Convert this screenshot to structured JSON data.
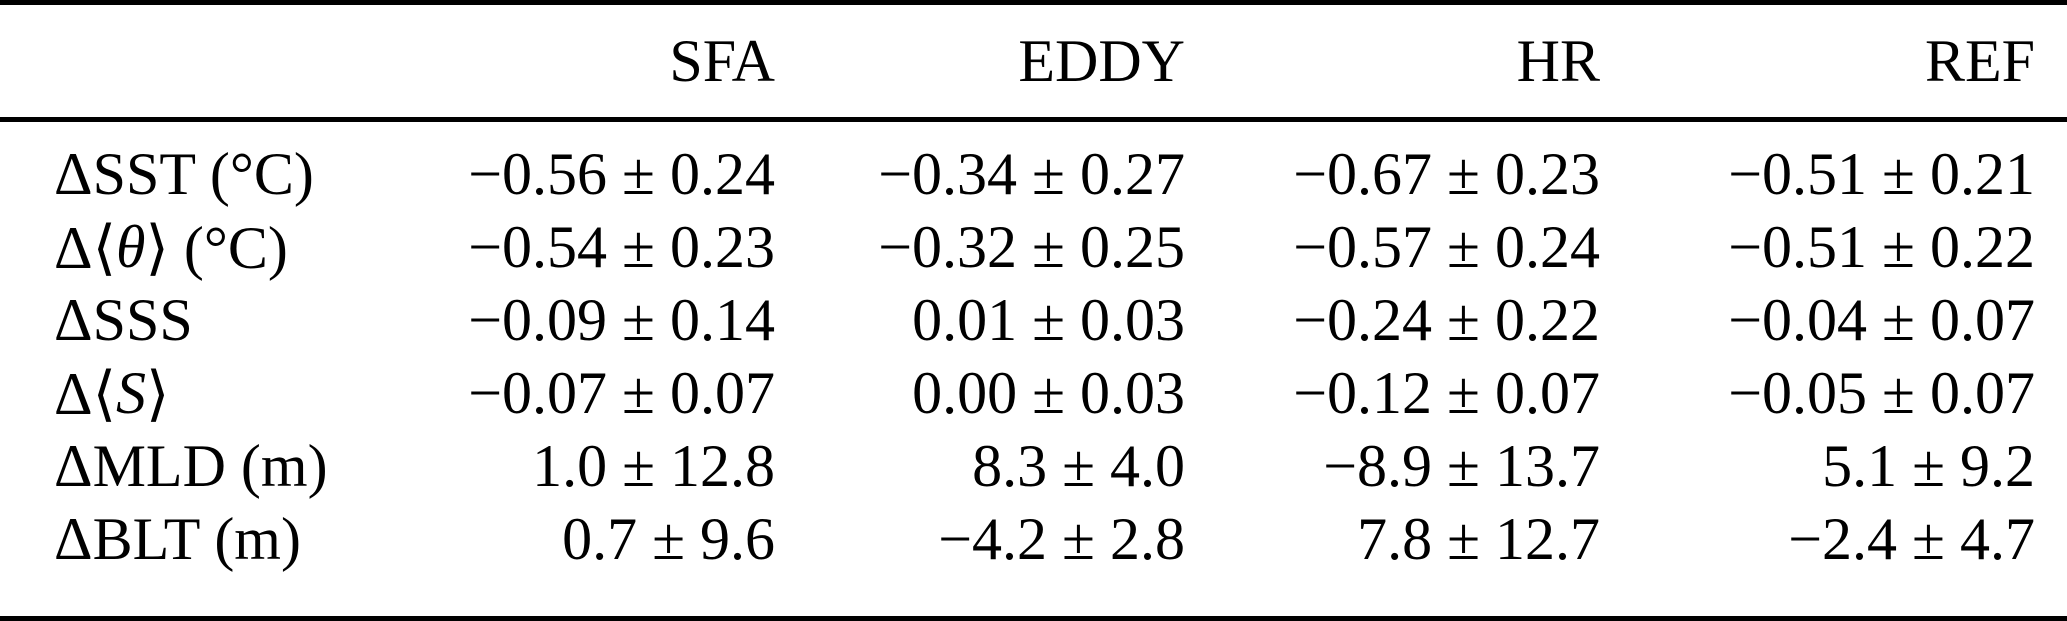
{
  "table": {
    "columns": [
      "SFA",
      "EDDY",
      "HR",
      "REF"
    ],
    "rows": [
      {
        "label": {
          "pre": "ΔSST (°C)",
          "var": "",
          "post": ""
        },
        "values": [
          "−0.56 ± 0.24",
          "−0.34 ± 0.27",
          "−0.67 ± 0.23",
          "−0.51 ± 0.21"
        ]
      },
      {
        "label": {
          "pre": "Δ⟨",
          "var": "θ",
          "post": "⟩ (°C)"
        },
        "values": [
          "−0.54 ± 0.23",
          "−0.32 ± 0.25",
          "−0.57 ± 0.24",
          "−0.51 ± 0.22"
        ]
      },
      {
        "label": {
          "pre": "ΔSSS",
          "var": "",
          "post": ""
        },
        "values": [
          "−0.09 ± 0.14",
          "0.01 ± 0.03",
          "−0.24 ± 0.22",
          "−0.04 ± 0.07"
        ]
      },
      {
        "label": {
          "pre": "Δ⟨",
          "var": "S",
          "post": "⟩"
        },
        "values": [
          "−0.07 ± 0.07",
          "0.00 ± 0.03",
          "−0.12 ± 0.07",
          "−0.05 ± 0.07"
        ]
      },
      {
        "label": {
          "pre": "ΔMLD (m)",
          "var": "",
          "post": ""
        },
        "values": [
          "1.0 ± 12.8",
          "8.3 ± 4.0",
          "−8.9 ± 13.7",
          "5.1 ± 9.2"
        ]
      },
      {
        "label": {
          "pre": "ΔBLT (m)",
          "var": "",
          "post": ""
        },
        "values": [
          "0.7 ± 9.6",
          "−4.2 ± 2.8",
          "7.8 ± 12.7",
          "−2.4 ± 4.7"
        ]
      }
    ],
    "colors": {
      "text": "#000000",
      "background": "#ffffff",
      "rule": "#000000"
    }
  }
}
